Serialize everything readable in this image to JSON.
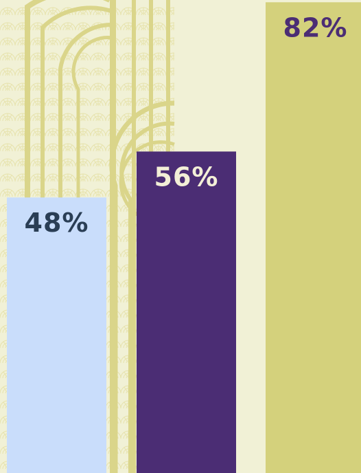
{
  "chart_data": {
    "type": "bar",
    "categories": [
      "",
      "",
      ""
    ],
    "values": [
      48,
      56,
      82
    ],
    "value_labels": [
      "48%",
      "56%",
      "82%"
    ],
    "ylim": [
      0,
      100
    ],
    "grid": false,
    "legend": "none",
    "bar_colors": [
      "#c9ddfb",
      "#4b2d74",
      "#d4d17c"
    ],
    "label_colors": [
      "#2a3e55",
      "#f3efd7",
      "#4b2d74"
    ],
    "background_color": "#f1f1d6",
    "pattern_color": "#dad58a",
    "title": "",
    "xlabel": "",
    "ylabel": ""
  }
}
